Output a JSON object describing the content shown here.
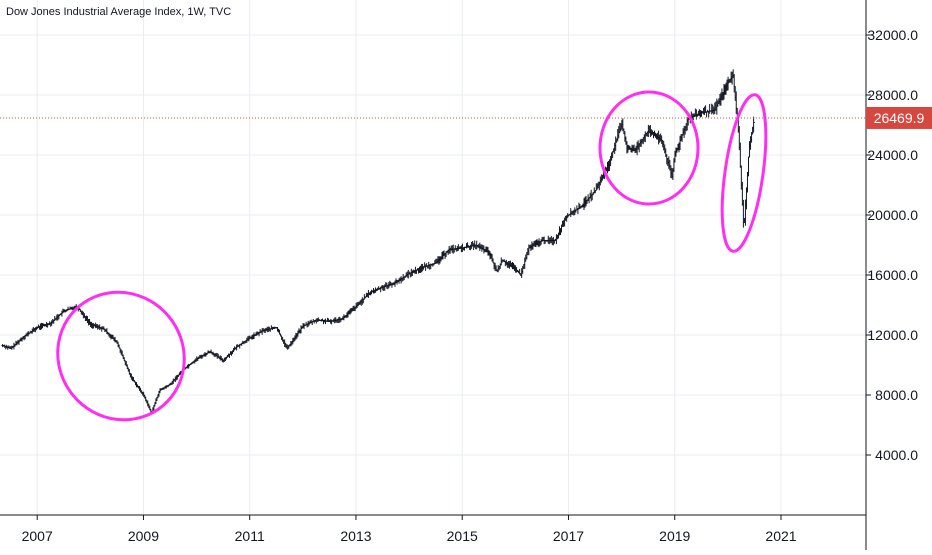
{
  "header": {
    "symbol_title": "Dow Jones Industrial Average Index, 1W, TVC"
  },
  "colors": {
    "grid": "#e9ecf0",
    "price_line": "#d6473f",
    "price_badge": "#d6473f",
    "candles": "#131722",
    "annotation": "#ff2ff2",
    "axis_text": "#131722"
  },
  "chart_data": {
    "type": "line",
    "title": "Dow Jones Industrial Average Index, 1W, TVC",
    "xlabel": "",
    "ylabel": "",
    "x_tick_labels": [
      "2007",
      "2009",
      "2011",
      "2013",
      "2015",
      "2017",
      "2019",
      "2021"
    ],
    "y_tick_labels": [
      "4000.0",
      "8000.0",
      "12000.0",
      "16000.0",
      "20000.0",
      "24000.0",
      "28000.0",
      "32000.0"
    ],
    "ylim": [
      0,
      34000
    ],
    "grid": true,
    "last_price": 26469.9,
    "last_price_label": "26469.9",
    "series": [
      {
        "values_desc": "weekly close",
        "x": [
          2006.35,
          2006.5,
          2006.75,
          2007.0,
          2007.25,
          2007.5,
          2007.75,
          2008.0,
          2008.25,
          2008.5,
          2008.75,
          2008.9,
          2009.0,
          2009.15,
          2009.3,
          2009.5,
          2009.75,
          2010.0,
          2010.25,
          2010.5,
          2010.75,
          2011.0,
          2011.25,
          2011.5,
          2011.7,
          2011.9,
          2012.0,
          2012.25,
          2012.5,
          2012.75,
          2013.0,
          2013.25,
          2013.5,
          2013.75,
          2014.0,
          2014.25,
          2014.5,
          2014.75,
          2015.0,
          2015.25,
          2015.5,
          2015.65,
          2015.75,
          2016.0,
          2016.1,
          2016.25,
          2016.5,
          2016.75,
          2016.95,
          2017.0,
          2017.25,
          2017.5,
          2017.75,
          2018.0,
          2018.1,
          2018.25,
          2018.5,
          2018.75,
          2018.95,
          2019.0,
          2019.25,
          2019.5,
          2019.75,
          2020.0,
          2020.1,
          2020.2,
          2020.3,
          2020.4,
          2020.5
        ],
        "values": [
          11300,
          11100,
          11900,
          12500,
          12800,
          13600,
          13900,
          12700,
          12400,
          11500,
          9300,
          8500,
          8000,
          6800,
          8300,
          8700,
          9700,
          10400,
          10900,
          10300,
          11200,
          11800,
          12300,
          12500,
          11100,
          12100,
          12600,
          13000,
          12900,
          13100,
          13900,
          14800,
          15200,
          15500,
          16100,
          16500,
          16800,
          17700,
          17800,
          18000,
          17500,
          16200,
          17000,
          16400,
          16000,
          17800,
          18300,
          18300,
          19900,
          20000,
          20600,
          21600,
          23300,
          26100,
          24500,
          24300,
          25600,
          25000,
          22500,
          24000,
          26400,
          26800,
          27000,
          28800,
          29300,
          25500,
          19000,
          24500,
          26470
        ]
      }
    ],
    "annotations": [
      "circle",
      "circle",
      "circle"
    ]
  }
}
